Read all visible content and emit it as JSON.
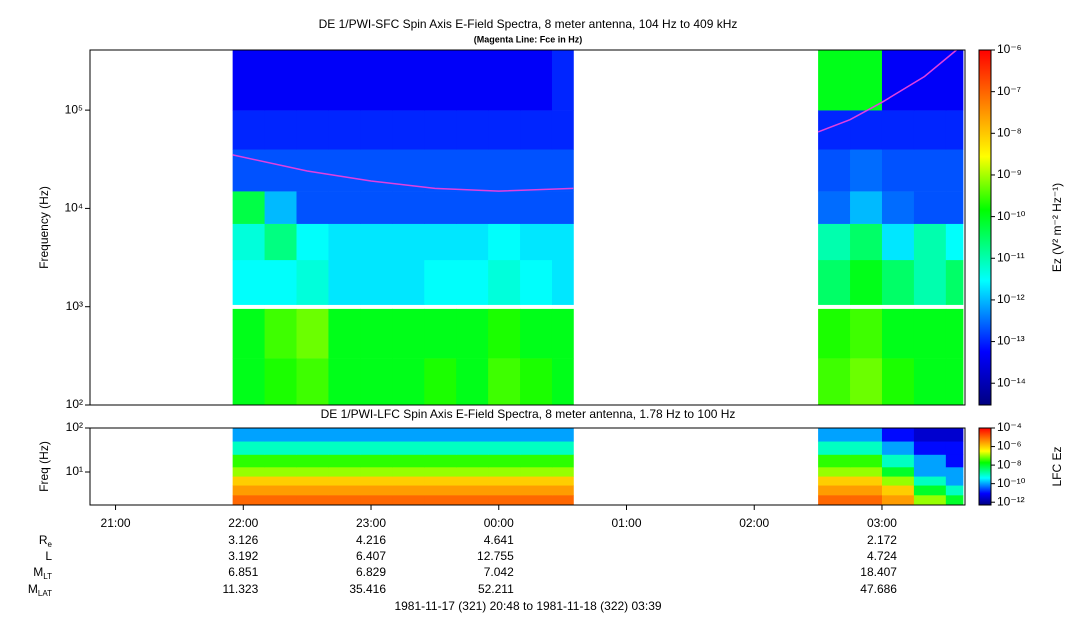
{
  "chart_data": [
    {
      "type": "heatmap",
      "title": "DE 1/PWI-SFC  Spin Axis E-Field Spectra, 8 meter antenna, 104 Hz to 409 kHz",
      "subtitle": "(Magenta Line: Fce in Hz)",
      "ylabel": "Frequency (Hz)",
      "log_y": true,
      "xlim": [
        "20:48",
        "03:39"
      ],
      "ylim": [
        100,
        409000
      ],
      "yticks": [
        {
          "value": 100,
          "label": "10²"
        },
        {
          "value": 1000,
          "label": "10³"
        },
        {
          "value": 10000,
          "label": "10⁴"
        },
        {
          "value": 100000,
          "label": "10⁵"
        }
      ],
      "x": [
        "21:55",
        "22:10",
        "22:25",
        "22:40",
        "22:55",
        "23:10",
        "23:25",
        "23:40",
        "23:55",
        "00:10",
        "00:25",
        "00:35",
        "02:30",
        "02:45",
        "03:00",
        "03:15",
        "03:30",
        "03:38"
      ],
      "y": [
        100,
        300,
        950,
        1050,
        3000,
        7000,
        15000,
        40000,
        100000,
        409000
      ],
      "z": [
        [
          1e-10,
          2e-10,
          3e-10,
          1e-10,
          1e-10,
          1e-10,
          2e-10,
          1e-10,
          3e-10,
          2e-10,
          1e-10,
          null,
          3e-10,
          5e-10,
          2e-10,
          1e-10,
          1e-10
        ],
        [
          1e-10,
          3e-10,
          5e-10,
          1e-10,
          1e-10,
          1e-10,
          1e-10,
          1e-10,
          2e-10,
          1e-10,
          1e-10,
          null,
          2e-10,
          3e-10,
          1e-10,
          1e-10,
          1e-10
        ],
        [
          null,
          null,
          null,
          null,
          null,
          null,
          null,
          null,
          null,
          null,
          null,
          null,
          null,
          null,
          null,
          null,
          null
        ],
        [
          3e-12,
          3e-12,
          5e-12,
          2e-12,
          2e-12,
          2e-12,
          3e-12,
          3e-12,
          5e-12,
          3e-12,
          2e-12,
          null,
          3e-11,
          1e-10,
          3e-11,
          1e-11,
          3e-11
        ],
        [
          5e-12,
          2e-11,
          3e-12,
          2e-12,
          2e-12,
          2e-12,
          2e-12,
          2e-12,
          3e-12,
          2e-12,
          2e-12,
          null,
          1e-11,
          3e-11,
          2e-12,
          1e-11,
          3e-12
        ],
        [
          5e-11,
          1e-12,
          2e-13,
          2e-13,
          2e-13,
          2e-13,
          2e-13,
          2e-13,
          2e-13,
          2e-13,
          2e-13,
          null,
          3e-13,
          1e-12,
          3e-13,
          2e-13,
          2e-13
        ],
        [
          2e-13,
          2e-13,
          2e-13,
          2e-13,
          2e-13,
          2e-13,
          2e-13,
          2e-13,
          2e-13,
          2e-13,
          2e-13,
          null,
          2e-13,
          3e-13,
          2e-13,
          2e-13,
          2e-13
        ],
        [
          1e-13,
          1e-13,
          1e-13,
          1e-13,
          1e-13,
          1e-13,
          1e-13,
          1e-13,
          1e-13,
          1e-13,
          1e-13,
          null,
          1e-13,
          1e-13,
          1e-13,
          1e-13,
          1e-13
        ],
        [
          5e-14,
          5e-14,
          5e-14,
          5e-14,
          5e-14,
          5e-14,
          5e-14,
          5e-14,
          5e-14,
          5e-14,
          1e-13,
          null,
          1e-10,
          1e-10,
          5e-14,
          5e-14,
          5e-14
        ]
      ],
      "fce": {
        "color": "#e040e0",
        "x": [
          "21:55",
          "22:30",
          "23:00",
          "23:30",
          "00:00",
          "00:35",
          null,
          "02:30",
          "02:45",
          "03:00",
          "03:20",
          "03:35"
        ],
        "y": [
          35000,
          24000,
          19000,
          16000,
          15000,
          16000,
          null,
          60000,
          80000,
          120000,
          220000,
          409000
        ]
      },
      "colorbar_label": "Ez (V² m⁻² Hz⁻¹)",
      "clim": [
        3e-15,
        1e-06
      ],
      "cticks": [
        {
          "value": 1e-06,
          "label": "10⁻⁶"
        },
        {
          "value": 1e-07,
          "label": "10⁻⁷"
        },
        {
          "value": 1e-08,
          "label": "10⁻⁸"
        },
        {
          "value": 1e-09,
          "label": "10⁻⁹"
        },
        {
          "value": 1e-10,
          "label": "10⁻¹⁰"
        },
        {
          "value": 1e-11,
          "label": "10⁻¹¹"
        },
        {
          "value": 1e-12,
          "label": "10⁻¹²"
        },
        {
          "value": 1e-13,
          "label": "10⁻¹³"
        },
        {
          "value": 1e-14,
          "label": "10⁻¹⁴"
        }
      ]
    },
    {
      "type": "heatmap",
      "title": "DE 1/PWI-LFC  Spin Axis E-Field Spectra, 8 meter antenna, 1.78 Hz to 100 Hz",
      "ylabel": "Freq (Hz)",
      "log_y": true,
      "xlim": [
        "20:48",
        "03:39"
      ],
      "xticks": [
        "21:00",
        "22:00",
        "23:00",
        "00:00",
        "01:00",
        "02:00",
        "03:00"
      ],
      "ylim": [
        1.78,
        100
      ],
      "yticks": [
        {
          "value": 10,
          "label": "10¹"
        },
        {
          "value": 100,
          "label": "10²"
        }
      ],
      "x": [
        "21:55",
        "22:10",
        "22:25",
        "22:40",
        "22:55",
        "23:10",
        "23:25",
        "23:40",
        "23:55",
        "00:10",
        "00:25",
        "00:35",
        "02:30",
        "02:45",
        "03:00",
        "03:15",
        "03:30",
        "03:38"
      ],
      "y": [
        1.78,
        3,
        5,
        8,
        13,
        25,
        50,
        100
      ],
      "z": [
        [
          1e-05,
          1e-05,
          1e-05,
          1e-05,
          1e-05,
          1e-05,
          1e-05,
          1e-05,
          1e-05,
          1e-05,
          1e-05,
          null,
          1e-05,
          1e-05,
          3e-06,
          1e-07,
          1e-08
        ],
        [
          3e-06,
          3e-06,
          3e-06,
          3e-06,
          3e-06,
          3e-06,
          3e-06,
          3e-06,
          3e-06,
          3e-06,
          3e-06,
          null,
          3e-06,
          3e-06,
          1e-06,
          1e-08,
          1e-09
        ],
        [
          1e-06,
          1e-06,
          1e-06,
          1e-06,
          1e-06,
          1e-06,
          1e-06,
          1e-06,
          1e-06,
          1e-06,
          1e-06,
          null,
          1e-06,
          1e-06,
          1e-07,
          1e-09,
          1e-10
        ],
        [
          1e-07,
          1e-07,
          1e-07,
          1e-07,
          1e-07,
          1e-07,
          1e-07,
          1e-07,
          1e-07,
          1e-07,
          1e-07,
          null,
          1e-07,
          1e-07,
          1e-08,
          1e-10,
          1e-10
        ],
        [
          3e-08,
          3e-08,
          3e-08,
          3e-08,
          3e-08,
          3e-08,
          3e-08,
          3e-08,
          3e-08,
          3e-08,
          3e-08,
          null,
          3e-08,
          3e-08,
          1e-09,
          1e-10,
          1e-11
        ],
        [
          1e-09,
          1e-09,
          1e-09,
          1e-09,
          1e-09,
          1e-09,
          1e-09,
          1e-09,
          1e-09,
          1e-09,
          1e-09,
          null,
          1e-09,
          1e-09,
          1e-10,
          1e-11,
          1e-11
        ],
        [
          1e-10,
          1e-10,
          1e-10,
          1e-10,
          1e-10,
          1e-10,
          1e-10,
          1e-10,
          1e-10,
          1e-10,
          1e-10,
          null,
          1e-10,
          1e-10,
          1e-11,
          3e-12,
          3e-12
        ]
      ],
      "colorbar_label": "LFC Ez",
      "clim": [
        5e-13,
        0.0001
      ],
      "cticks": [
        {
          "value": 0.0001,
          "label": "10⁻⁴"
        },
        {
          "value": 1e-06,
          "label": "10⁻⁶"
        },
        {
          "value": 1e-08,
          "label": "10⁻⁸"
        },
        {
          "value": 1e-10,
          "label": "10⁻¹⁰"
        },
        {
          "value": 1e-12,
          "label": "10⁻¹²"
        }
      ]
    }
  ],
  "ephemeris": {
    "rows": [
      {
        "label": "R",
        "sub": "e",
        "values": [
          3.126,
          4.216,
          4.641,
          2.172
        ]
      },
      {
        "label": "L",
        "values": [
          3.192,
          6.407,
          12.755,
          4.724
        ]
      },
      {
        "label": "M",
        "sub": "LT",
        "values": [
          6.851,
          6.829,
          7.042,
          18.407
        ]
      },
      {
        "label": "M",
        "sub": "LAT",
        "values": [
          11.323,
          35.416,
          52.211,
          47.686
        ]
      }
    ]
  },
  "footer": "1981-11-17 (321) 20:48 to 1981-11-18 (322) 03:39"
}
